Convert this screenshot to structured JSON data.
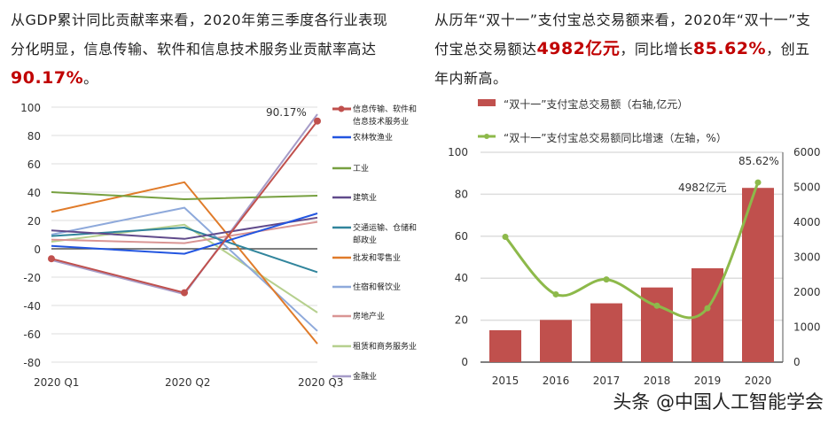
{
  "left_text": {
    "before": "从GDP累计同比贡献率来看，2020年第三季度各行业表现分化明显，信息传输、软件和信息技术服务业贡献率高达",
    "highlight": "90.17%",
    "after": "。"
  },
  "right_text": {
    "before": "从历年“双十一”支付宝总交易额来看，2020年“双十一”支付宝总交易额达",
    "hl1": "4982亿元",
    "mid": "，同比增长",
    "hl2": "85.62%",
    "after": "，创五年内新高。"
  },
  "watermark": "头条 @中国人工智能学会",
  "chart_data": [
    {
      "type": "line",
      "categories": [
        "2020 Q1",
        "2020 Q2",
        "2020 Q3"
      ],
      "ylim": [
        -80,
        100
      ],
      "yticks": [
        100,
        80,
        60,
        40,
        20,
        0,
        -20,
        -40,
        -60,
        -80
      ],
      "grid": true,
      "legend": "right",
      "annotation": "90.17%",
      "series": [
        {
          "name": "信息传输、软件和信息技术服务业",
          "values": [
            -7,
            -31,
            90.17
          ],
          "color": "#c0504d",
          "markers": true
        },
        {
          "name": "农林牧渔业",
          "values": [
            2,
            -3.5,
            25
          ],
          "color": "#2255e0"
        },
        {
          "name": "工业",
          "values": [
            40,
            35,
            37.5
          ],
          "color": "#77a040"
        },
        {
          "name": "建筑业",
          "values": [
            13,
            7,
            22
          ],
          "color": "#604a8b"
        },
        {
          "name": "交通运输、仓储和邮政业",
          "values": [
            9,
            15,
            -16.5
          ],
          "color": "#31859c"
        },
        {
          "name": "批发和零售业",
          "values": [
            26,
            47,
            -67
          ],
          "color": "#e07b2a"
        },
        {
          "name": "住宿和餐饮业",
          "values": [
            10,
            29,
            -58
          ],
          "color": "#8ea9db"
        },
        {
          "name": "房地产业",
          "values": [
            6.5,
            4,
            19
          ],
          "color": "#d99594"
        },
        {
          "name": "租赁和商务服务业",
          "values": [
            5,
            17,
            -45
          ],
          "color": "#b6d08e"
        },
        {
          "name": "金融业",
          "values": [
            -8,
            -32,
            95
          ],
          "color": "#a69cc8"
        }
      ]
    },
    {
      "type": "bar+line",
      "categories": [
        "2015",
        "2016",
        "2017",
        "2018",
        "2019",
        "2020"
      ],
      "left_ylim": [
        0,
        100
      ],
      "left_yticks": [
        0,
        20,
        40,
        60,
        80,
        100
      ],
      "right_ylim": [
        0,
        6000
      ],
      "right_yticks": [
        0,
        1000,
        2000,
        3000,
        4000,
        5000,
        6000
      ],
      "grid": true,
      "legend": "top",
      "series": [
        {
          "name": "“双十一”支付宝总交易额（右轴,亿元）",
          "type": "bar",
          "axis": "right",
          "values": [
            912,
            1207,
            1682,
            2135,
            2684,
            4982
          ],
          "color": "#c0504d"
        },
        {
          "name": "“双十一”支付宝总交易额同比增速（左轴，%）",
          "type": "line",
          "axis": "left",
          "values": [
            59.7,
            32.3,
            39.4,
            26.9,
            25.7,
            85.62
          ],
          "color": "#8db94a"
        }
      ],
      "annotations": [
        "4982亿元",
        "85.62%"
      ]
    }
  ]
}
